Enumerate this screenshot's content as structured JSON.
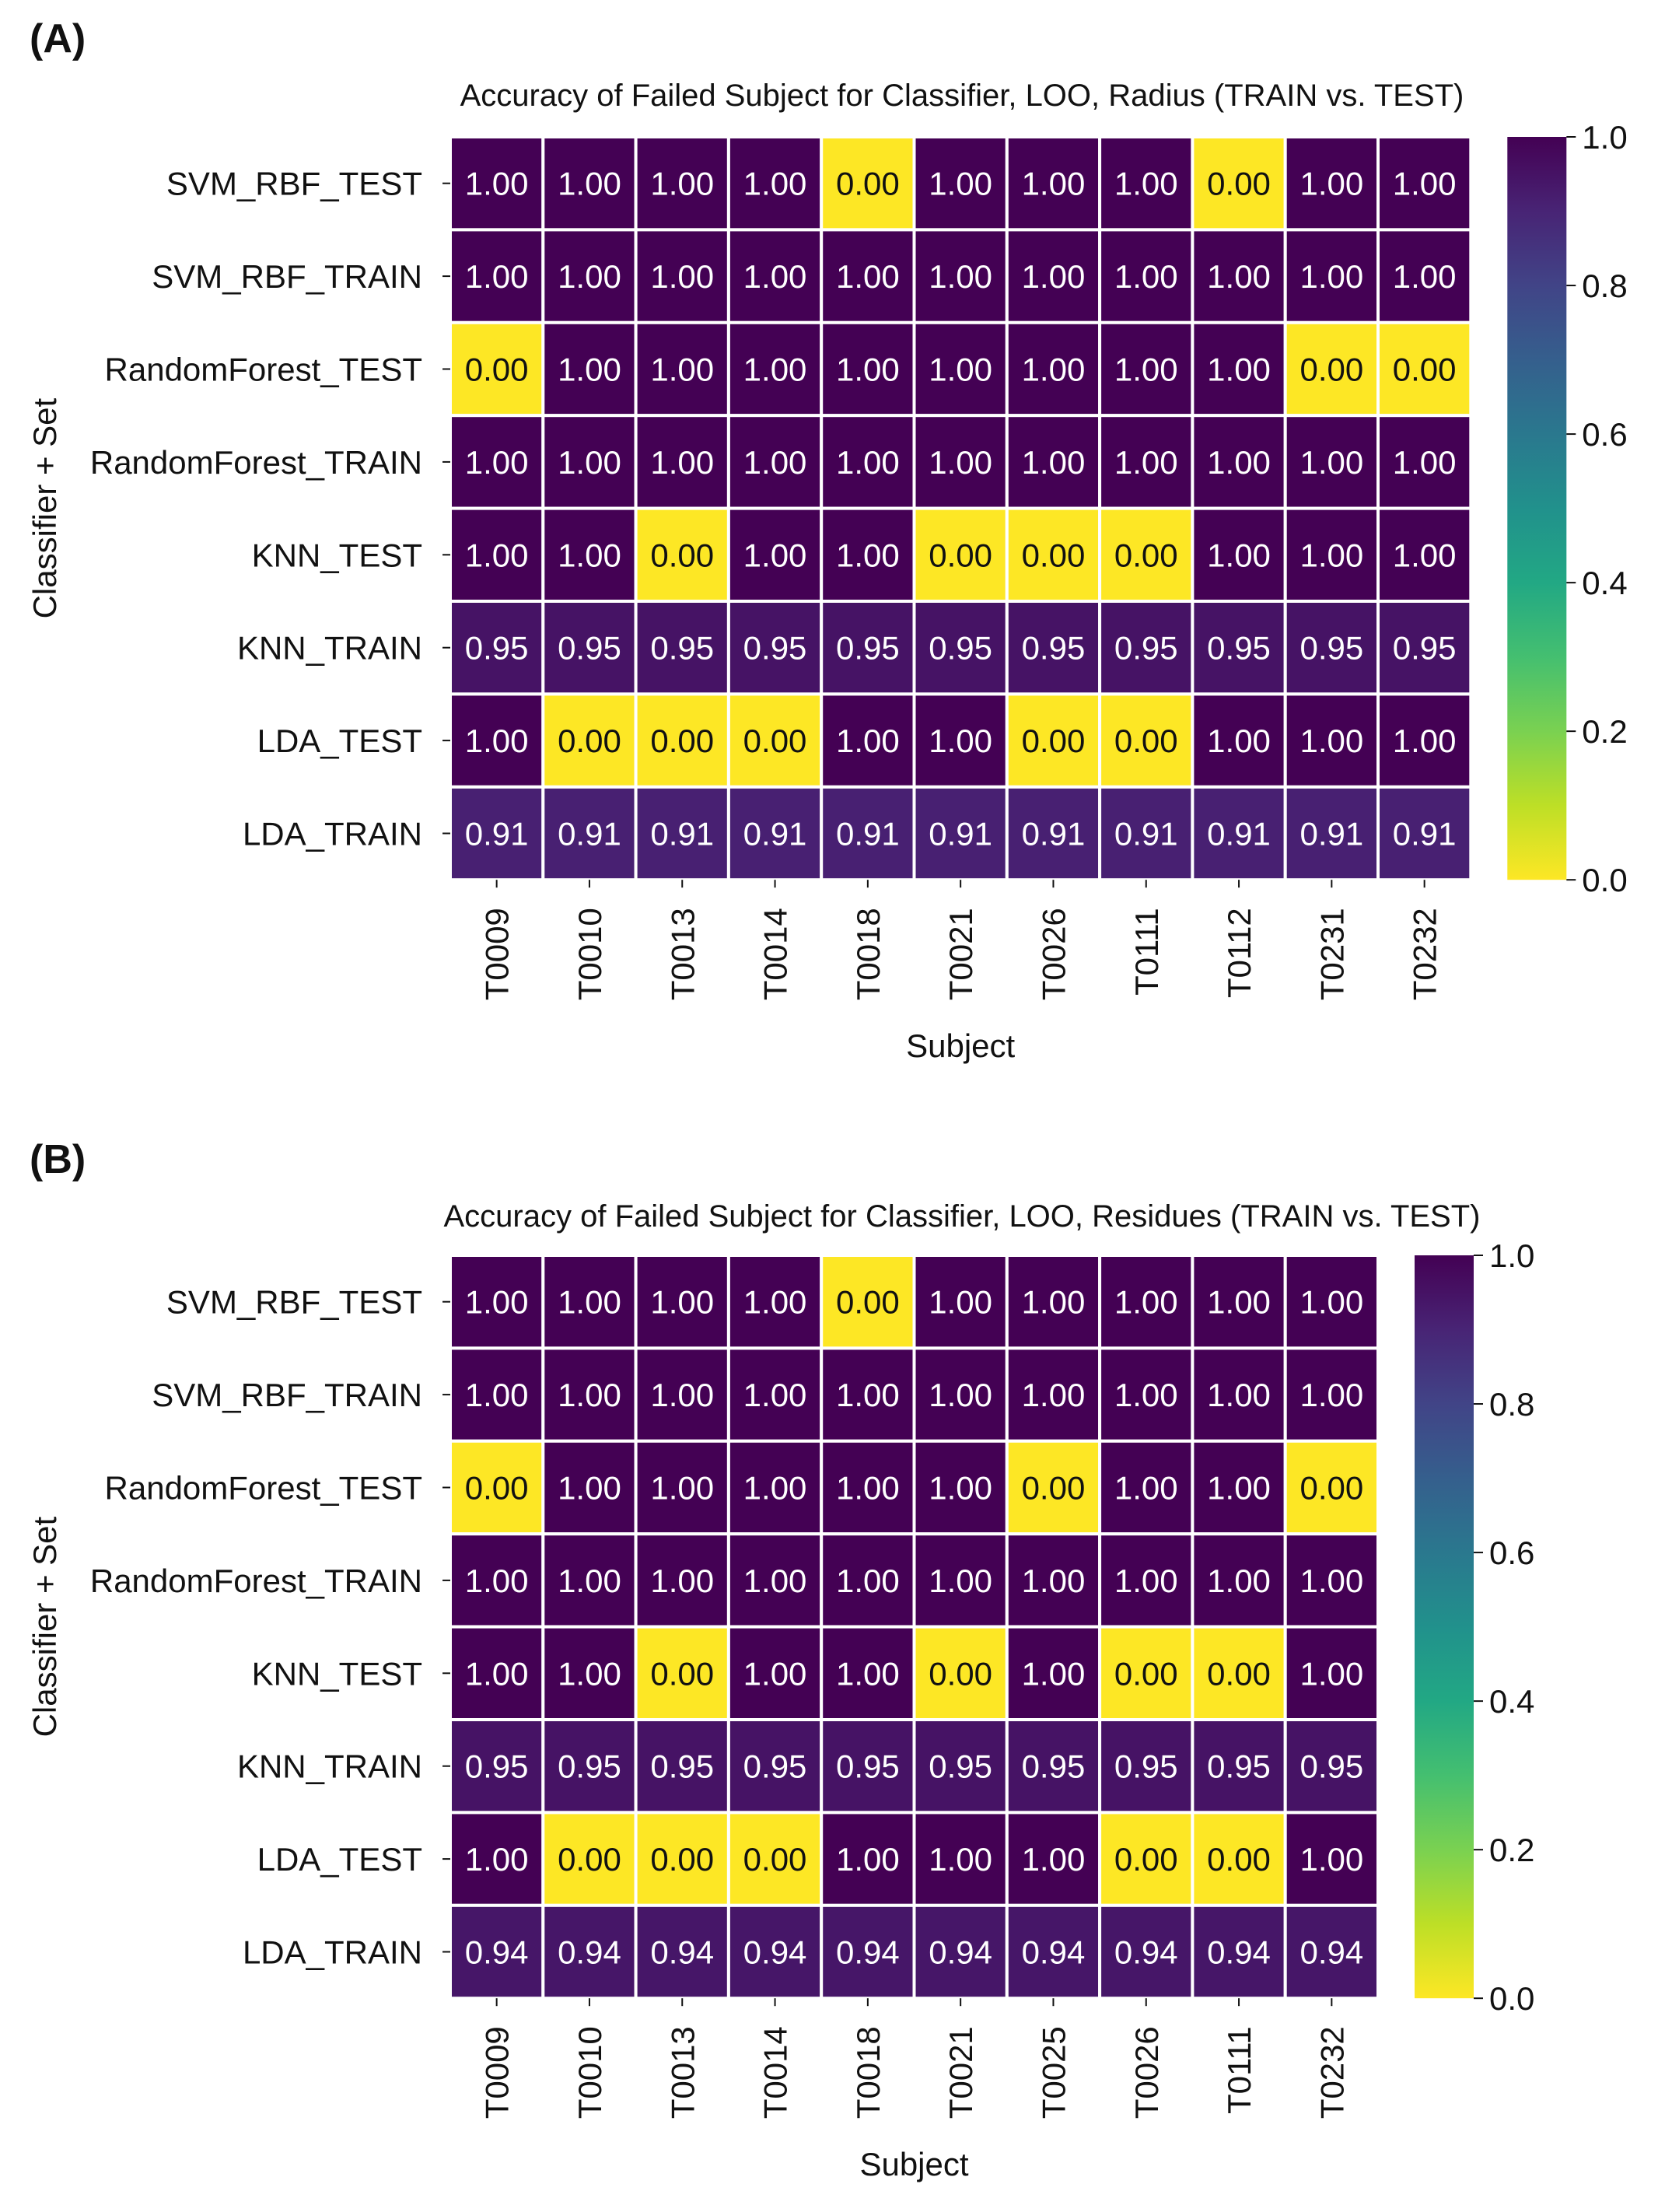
{
  "chart_data": [
    {
      "type": "heatmap",
      "panel_label": "(A)",
      "title": "Accuracy of Failed Subject for Classifier, LOO, Radius (TRAIN vs. TEST)",
      "xlabel": "Subject",
      "ylabel": "Classifier + Set",
      "colormap": "viridis_r",
      "vlim": [
        0.0,
        1.0
      ],
      "colorbar_ticks": [
        "0.0",
        "0.2",
        "0.4",
        "0.6",
        "0.8",
        "1.0"
      ],
      "x": [
        "T0009",
        "T0010",
        "T0013",
        "T0014",
        "T0018",
        "T0021",
        "T0026",
        "T0111",
        "T0112",
        "T0231",
        "T0232"
      ],
      "y": [
        "SVM_RBF_TEST",
        "SVM_RBF_TRAIN",
        "RandomForest_TEST",
        "RandomForest_TRAIN",
        "KNN_TEST",
        "KNN_TRAIN",
        "LDA_TEST",
        "LDA_TRAIN"
      ],
      "values": [
        [
          1.0,
          1.0,
          1.0,
          1.0,
          0.0,
          1.0,
          1.0,
          1.0,
          0.0,
          1.0,
          1.0
        ],
        [
          1.0,
          1.0,
          1.0,
          1.0,
          1.0,
          1.0,
          1.0,
          1.0,
          1.0,
          1.0,
          1.0
        ],
        [
          0.0,
          1.0,
          1.0,
          1.0,
          1.0,
          1.0,
          1.0,
          1.0,
          1.0,
          0.0,
          0.0
        ],
        [
          1.0,
          1.0,
          1.0,
          1.0,
          1.0,
          1.0,
          1.0,
          1.0,
          1.0,
          1.0,
          1.0
        ],
        [
          1.0,
          1.0,
          0.0,
          1.0,
          1.0,
          0.0,
          0.0,
          0.0,
          1.0,
          1.0,
          1.0
        ],
        [
          0.95,
          0.95,
          0.95,
          0.95,
          0.95,
          0.95,
          0.95,
          0.95,
          0.95,
          0.95,
          0.95
        ],
        [
          1.0,
          0.0,
          0.0,
          0.0,
          1.0,
          1.0,
          0.0,
          0.0,
          1.0,
          1.0,
          1.0
        ],
        [
          0.91,
          0.91,
          0.91,
          0.91,
          0.91,
          0.91,
          0.91,
          0.91,
          0.91,
          0.91,
          0.91
        ]
      ]
    },
    {
      "type": "heatmap",
      "panel_label": "(B)",
      "title": "Accuracy of Failed Subject for Classifier, LOO, Residues (TRAIN vs. TEST)",
      "xlabel": "Subject",
      "ylabel": "Classifier + Set",
      "colormap": "viridis_r",
      "vlim": [
        0.0,
        1.0
      ],
      "colorbar_ticks": [
        "0.0",
        "0.2",
        "0.4",
        "0.6",
        "0.8",
        "1.0"
      ],
      "x": [
        "T0009",
        "T0010",
        "T0013",
        "T0014",
        "T0018",
        "T0021",
        "T0025",
        "T0026",
        "T0111",
        "T0232"
      ],
      "y": [
        "SVM_RBF_TEST",
        "SVM_RBF_TRAIN",
        "RandomForest_TEST",
        "RandomForest_TRAIN",
        "KNN_TEST",
        "KNN_TRAIN",
        "LDA_TEST",
        "LDA_TRAIN"
      ],
      "values": [
        [
          1.0,
          1.0,
          1.0,
          1.0,
          0.0,
          1.0,
          1.0,
          1.0,
          1.0,
          1.0
        ],
        [
          1.0,
          1.0,
          1.0,
          1.0,
          1.0,
          1.0,
          1.0,
          1.0,
          1.0,
          1.0
        ],
        [
          0.0,
          1.0,
          1.0,
          1.0,
          1.0,
          1.0,
          0.0,
          1.0,
          1.0,
          0.0
        ],
        [
          1.0,
          1.0,
          1.0,
          1.0,
          1.0,
          1.0,
          1.0,
          1.0,
          1.0,
          1.0
        ],
        [
          1.0,
          1.0,
          0.0,
          1.0,
          1.0,
          0.0,
          1.0,
          0.0,
          0.0,
          1.0
        ],
        [
          0.95,
          0.95,
          0.95,
          0.95,
          0.95,
          0.95,
          0.95,
          0.95,
          0.95,
          0.95
        ],
        [
          1.0,
          0.0,
          0.0,
          0.0,
          1.0,
          1.0,
          1.0,
          0.0,
          0.0,
          1.0
        ],
        [
          0.94,
          0.94,
          0.94,
          0.94,
          0.94,
          0.94,
          0.94,
          0.94,
          0.94,
          0.94
        ]
      ]
    }
  ]
}
